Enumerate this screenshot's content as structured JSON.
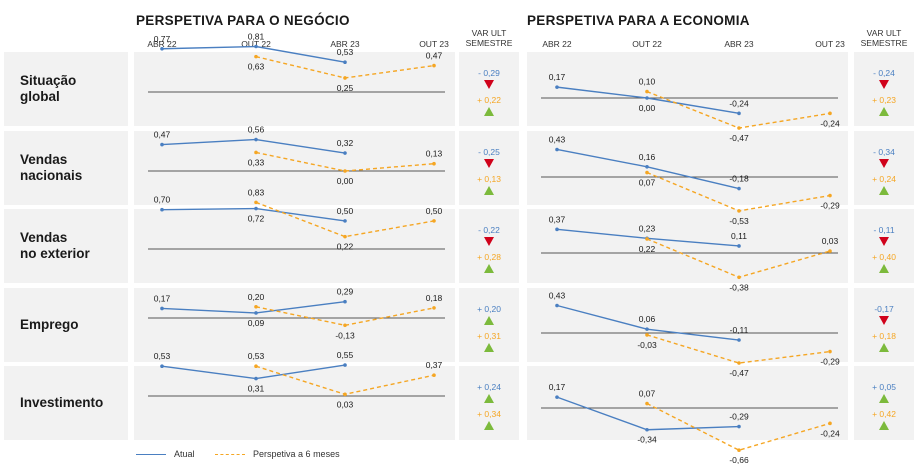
{
  "titles": {
    "business": "PERSPETIVA PARA O NEGÓCIO",
    "economy": "PERSPETIVA PARA A ECONOMIA"
  },
  "ticks": [
    "ABR 22",
    "OUT 22",
    "ABR 23",
    "OUT 23"
  ],
  "var_header": [
    "VAR ULT",
    "SEMESTRE"
  ],
  "legend": {
    "actual": "Atual",
    "outlook": "Perspetiva a 6 meses"
  },
  "colors": {
    "actual": "#4a7fc1",
    "outlook": "#f5a623",
    "down": "#d0021b",
    "up": "#7cba3c",
    "baseline": "#555555"
  },
  "rows": [
    {
      "label": [
        "Situação",
        "global"
      ]
    },
    {
      "label": [
        "Vendas",
        "nacionais"
      ]
    },
    {
      "label": [
        "Vendas",
        "no exterior"
      ]
    },
    {
      "label": [
        "Emprego"
      ]
    },
    {
      "label": [
        "Investimento"
      ]
    }
  ],
  "chart_data": [
    {
      "type": "line",
      "panel": "business",
      "x": [
        "ABR 22",
        "OUT 22",
        "ABR 23",
        "OUT 23"
      ],
      "rows": [
        {
          "row": "Situação global",
          "series": [
            {
              "name": "Atual",
              "values": [
                0.77,
                0.81,
                0.53,
                null
              ],
              "labels": [
                "0,77",
                "0,81",
                "0,53",
                ""
              ]
            },
            {
              "name": "Perspetiva a 6 meses",
              "values": [
                null,
                0.63,
                0.25,
                0.47
              ],
              "labels": [
                "",
                "0,63",
                "0,25",
                "0,47"
              ]
            }
          ],
          "var": {
            "actual": "- 0,29",
            "actual_dir": "down",
            "outlook": "+ 0,22",
            "outlook_dir": "up"
          }
        },
        {
          "row": "Vendas nacionais",
          "series": [
            {
              "name": "Atual",
              "values": [
                0.47,
                0.56,
                0.32,
                null
              ],
              "labels": [
                "0,47",
                "0,56",
                "0,32",
                ""
              ]
            },
            {
              "name": "Perspetiva a 6 meses",
              "values": [
                null,
                0.33,
                0.0,
                0.13
              ],
              "labels": [
                "",
                "0,33",
                "0,00",
                "0,13"
              ]
            }
          ],
          "var": {
            "actual": "- 0,25",
            "actual_dir": "down",
            "outlook": "+ 0,13",
            "outlook_dir": "up"
          }
        },
        {
          "row": "Vendas no exterior",
          "series": [
            {
              "name": "Atual",
              "values": [
                0.7,
                0.72,
                0.5,
                null
              ],
              "labels": [
                "0,70",
                "0,72",
                "0,50",
                ""
              ]
            },
            {
              "name": "Perspetiva a 6 meses",
              "values": [
                null,
                0.83,
                0.22,
                0.5
              ],
              "labels": [
                "",
                "0,83",
                "0,22",
                "0,50"
              ]
            }
          ],
          "var": {
            "actual": "- 0,22",
            "actual_dir": "down",
            "outlook": "+ 0,28",
            "outlook_dir": "up"
          }
        },
        {
          "row": "Emprego",
          "series": [
            {
              "name": "Atual",
              "values": [
                0.17,
                0.09,
                0.29,
                null
              ],
              "labels": [
                "0,17",
                "0,09",
                "0,29",
                ""
              ]
            },
            {
              "name": "Perspetiva a 6 meses",
              "values": [
                null,
                0.2,
                -0.13,
                0.18
              ],
              "labels": [
                "",
                "0,20",
                "-0,13",
                "0,18"
              ]
            }
          ],
          "var": {
            "actual": "+ 0,20",
            "actual_dir": "up",
            "outlook": "+ 0,31",
            "outlook_dir": "up"
          }
        },
        {
          "row": "Investimento",
          "series": [
            {
              "name": "Atual",
              "values": [
                0.53,
                0.31,
                0.55,
                null
              ],
              "labels": [
                "0,53",
                "0,31",
                "0,55",
                ""
              ]
            },
            {
              "name": "Perspetiva a 6 meses",
              "values": [
                null,
                0.53,
                0.03,
                0.37
              ],
              "labels": [
                "",
                "0,53",
                "0,03",
                "0,37"
              ]
            }
          ],
          "var": {
            "actual": "+ 0,24",
            "actual_dir": "up",
            "outlook": "+ 0,34",
            "outlook_dir": "up"
          }
        }
      ]
    },
    {
      "type": "line",
      "panel": "economy",
      "x": [
        "ABR 22",
        "OUT 22",
        "ABR 23",
        "OUT 23"
      ],
      "rows": [
        {
          "row": "Situação global",
          "series": [
            {
              "name": "Atual",
              "values": [
                0.17,
                0.0,
                -0.24,
                null
              ],
              "labels": [
                "0,17",
                "0,00",
                "-0,24",
                ""
              ]
            },
            {
              "name": "Perspetiva a 6 meses",
              "values": [
                null,
                0.1,
                -0.47,
                -0.24
              ],
              "labels": [
                "",
                "0,10",
                "-0,47",
                "-0,24"
              ]
            }
          ],
          "var": {
            "actual": "- 0,24",
            "actual_dir": "down",
            "outlook": "+ 0,23",
            "outlook_dir": "up"
          }
        },
        {
          "row": "Vendas nacionais",
          "series": [
            {
              "name": "Atual",
              "values": [
                0.43,
                0.16,
                -0.18,
                null
              ],
              "labels": [
                "0,43",
                "0,16",
                "-0,18",
                ""
              ]
            },
            {
              "name": "Perspetiva a 6 meses",
              "values": [
                null,
                0.07,
                -0.53,
                -0.29
              ],
              "labels": [
                "",
                "0,07",
                "-0,53",
                "-0,29"
              ]
            }
          ],
          "var": {
            "actual": "- 0,34",
            "actual_dir": "down",
            "outlook": "+ 0,24",
            "outlook_dir": "up"
          }
        },
        {
          "row": "Vendas no exterior",
          "series": [
            {
              "name": "Atual",
              "values": [
                0.37,
                0.23,
                0.11,
                null
              ],
              "labels": [
                "0,37",
                "0,23",
                "0,11",
                ""
              ]
            },
            {
              "name": "Perspetiva a 6 meses",
              "values": [
                null,
                0.22,
                -0.38,
                0.03
              ],
              "labels": [
                "",
                "0,22",
                "-0,38",
                "0,03"
              ]
            }
          ],
          "var": {
            "actual": "- 0,11",
            "actual_dir": "down",
            "outlook": "+ 0,40",
            "outlook_dir": "up"
          }
        },
        {
          "row": "Emprego",
          "series": [
            {
              "name": "Atual",
              "values": [
                0.43,
                0.06,
                -0.11,
                null
              ],
              "labels": [
                "0,43",
                "0,06",
                "-0,11",
                ""
              ]
            },
            {
              "name": "Perspetiva a 6 meses",
              "values": [
                null,
                -0.03,
                -0.47,
                -0.29
              ],
              "labels": [
                "",
                "-0,03",
                "-0,47",
                "-0,29"
              ]
            }
          ],
          "var": {
            "actual": "-0,17",
            "actual_dir": "down",
            "outlook": "+ 0,18",
            "outlook_dir": "up"
          }
        },
        {
          "row": "Investimento",
          "series": [
            {
              "name": "Atual",
              "values": [
                0.17,
                -0.34,
                -0.29,
                null
              ],
              "labels": [
                "0,17",
                "-0,34",
                "-0,29",
                ""
              ]
            },
            {
              "name": "Perspetiva a 6 meses",
              "values": [
                null,
                0.07,
                -0.66,
                -0.24
              ],
              "labels": [
                "",
                "0,07",
                "-0,66",
                "-0,24"
              ]
            }
          ],
          "var": {
            "actual": "+ 0,05",
            "actual_dir": "up",
            "outlook": "+ 0,42",
            "outlook_dir": "up"
          }
        }
      ]
    }
  ]
}
